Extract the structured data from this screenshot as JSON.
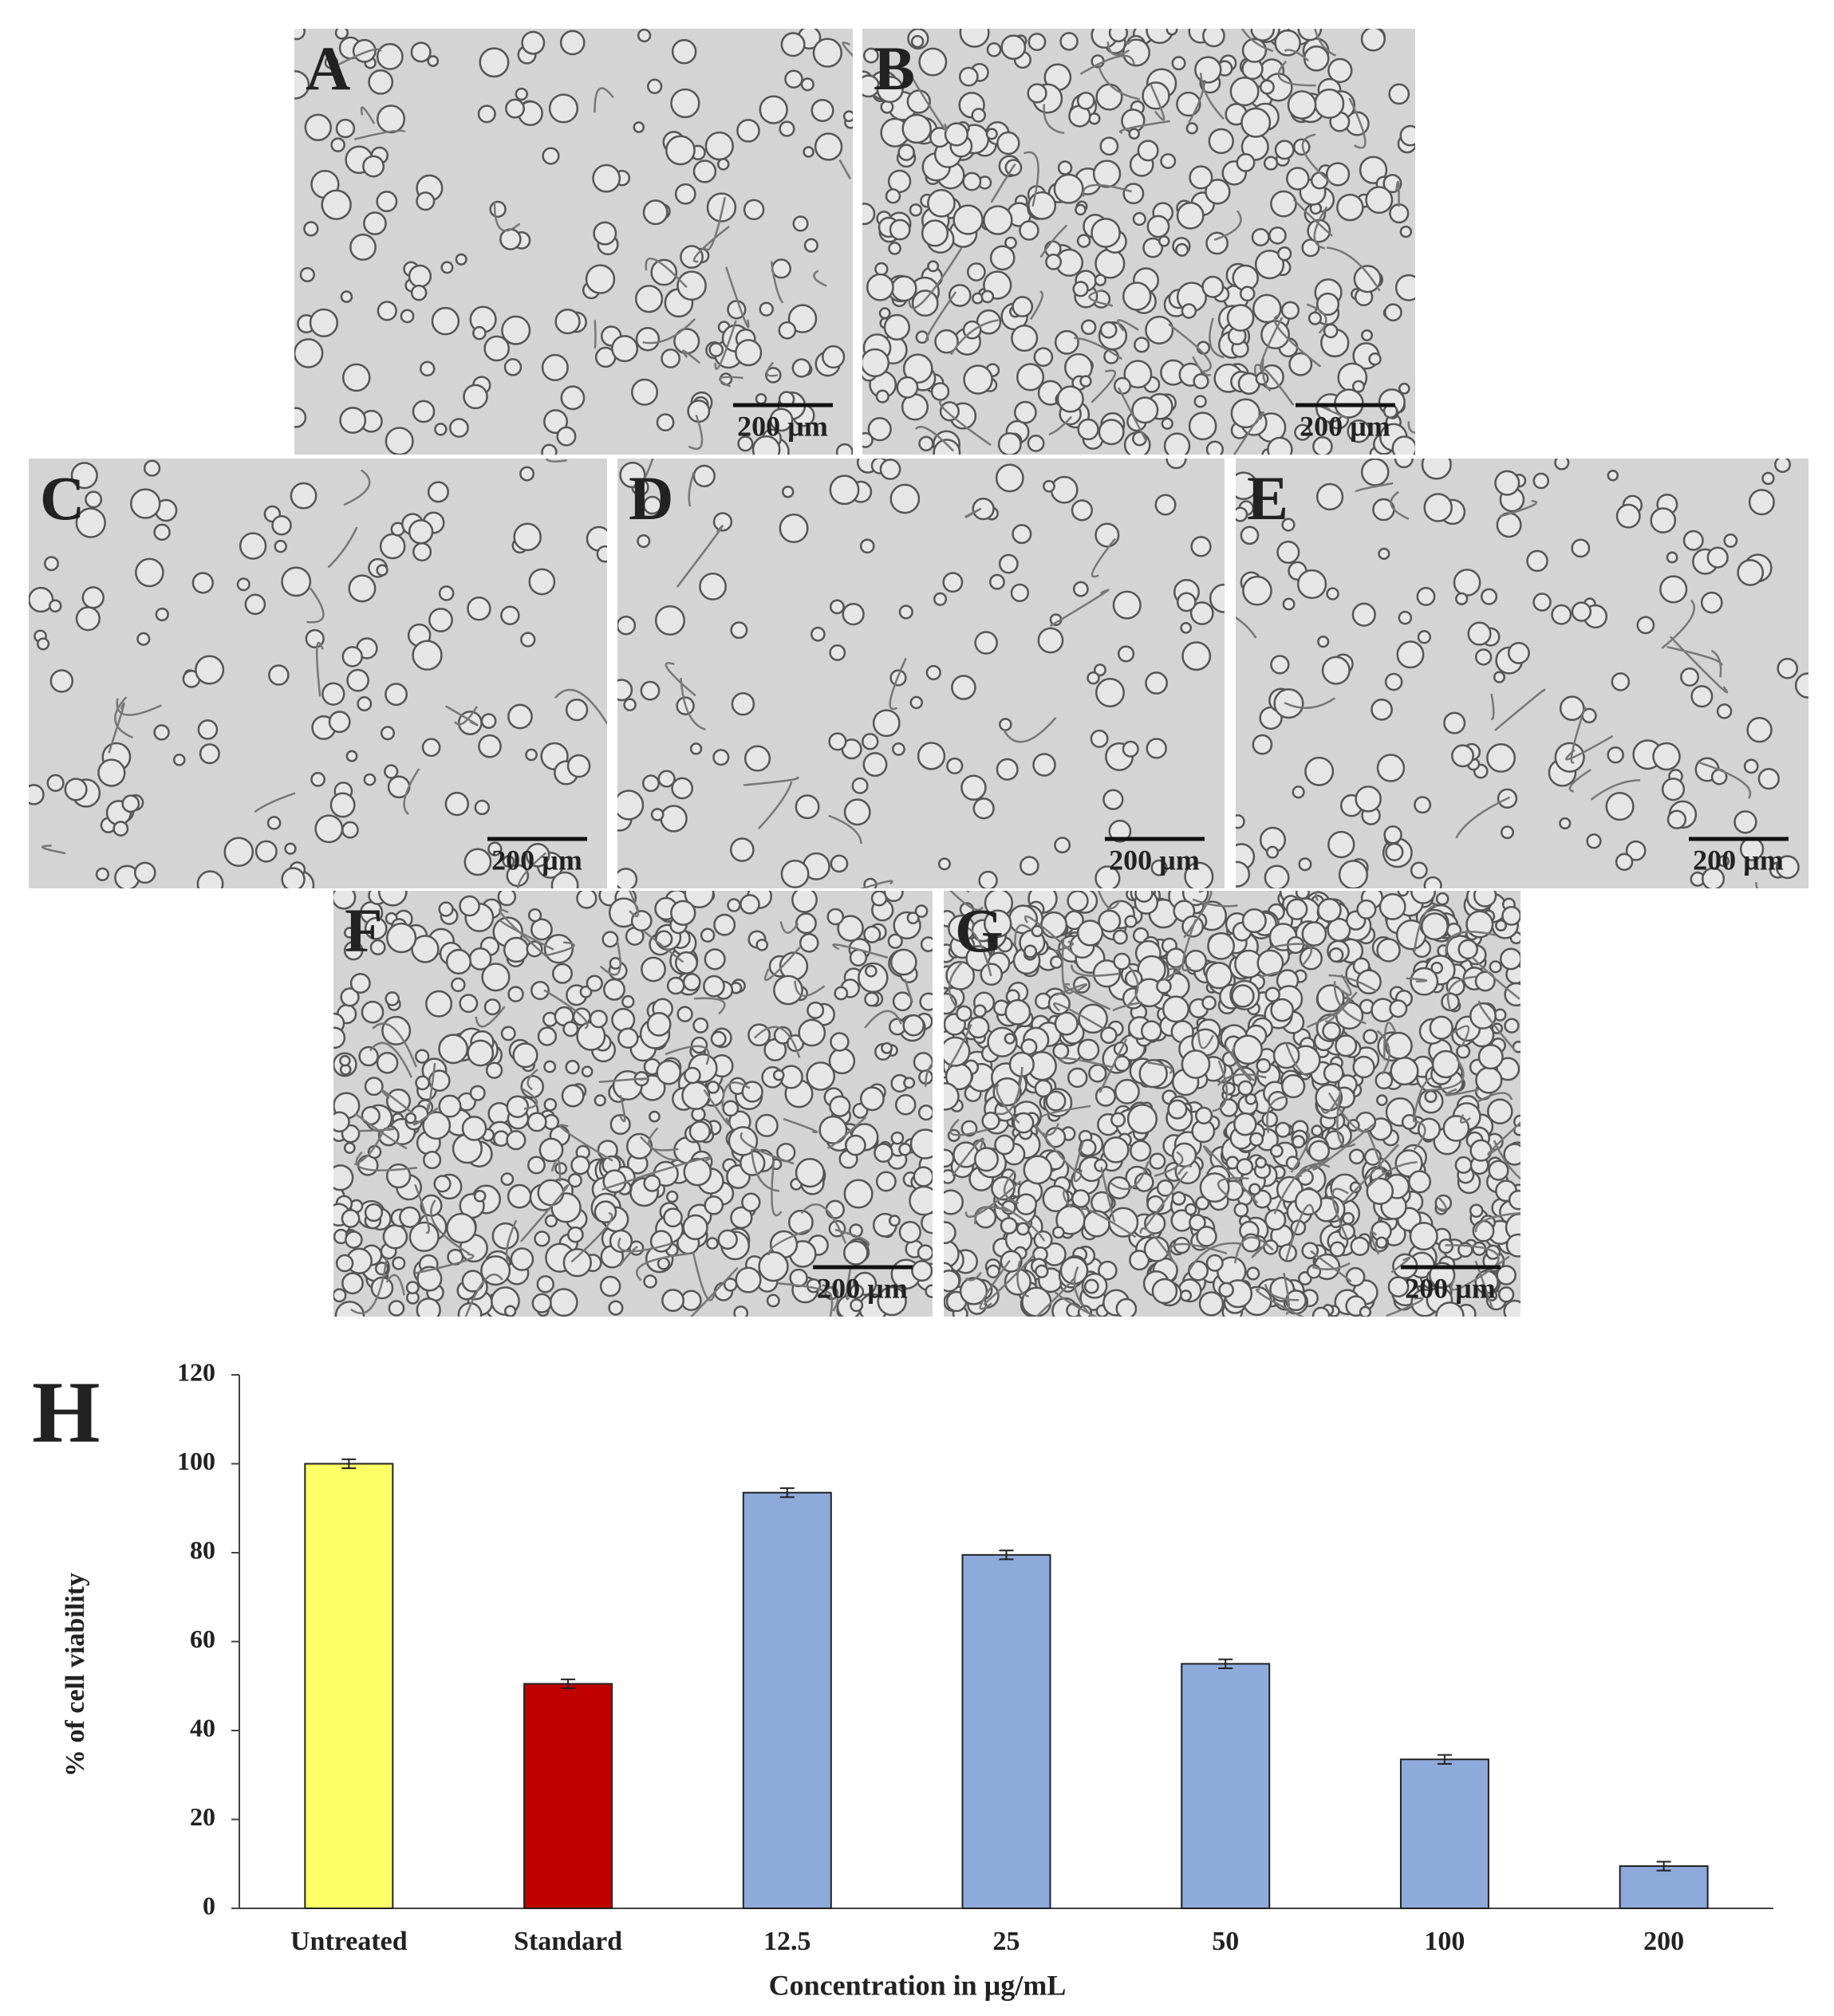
{
  "panels": [
    {
      "label": "A",
      "scale_bar": "200 µm"
    },
    {
      "label": "B",
      "scale_bar": "200 µm"
    },
    {
      "label": "C",
      "scale_bar": "200 µm"
    },
    {
      "label": "D",
      "scale_bar": "200 µm"
    },
    {
      "label": "E",
      "scale_bar": "200 µm"
    },
    {
      "label": "F",
      "scale_bar": "200 µm"
    },
    {
      "label": "G",
      "scale_bar": "200 µm"
    }
  ],
  "chart_data": {
    "type": "bar",
    "panel_label": "H",
    "ylabel": "% of cell viability",
    "xlabel": "Concentration in µg/mL",
    "categories": [
      "Untreated",
      "Standard",
      "12.5",
      "25",
      "50",
      "100",
      "200"
    ],
    "values": [
      100,
      50.5,
      93.5,
      79.5,
      55,
      33.5,
      9.5
    ],
    "errors": [
      1,
      1,
      1,
      1,
      1,
      1,
      1
    ],
    "colors": [
      "#ffff66",
      "#c00000",
      "#8eaadb",
      "#8eaadb",
      "#8eaadb",
      "#8eaadb",
      "#8eaadb"
    ],
    "ylim": [
      0,
      120
    ],
    "yticks": [
      0,
      20,
      40,
      60,
      80,
      100,
      120
    ],
    "grid": false
  }
}
